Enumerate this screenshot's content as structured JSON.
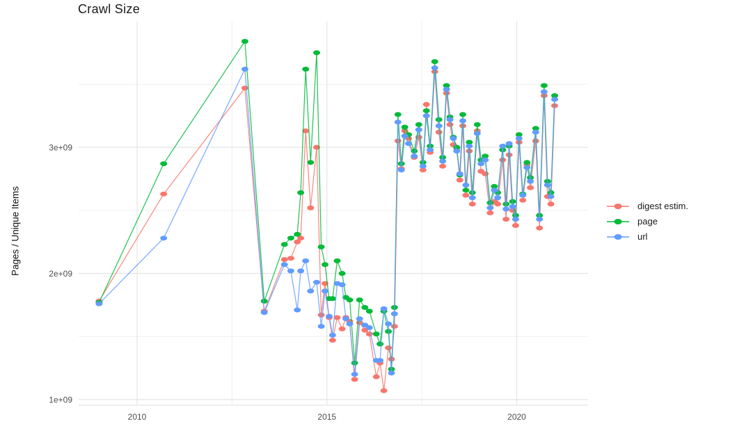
{
  "title": "Crawl Size",
  "axes": {
    "y_label": "Pages / Unique Items",
    "y_ticks": [
      "1e+09",
      "2e+09",
      "3e+09"
    ],
    "y_tick_values": [
      1,
      2,
      3
    ],
    "y_minor_values": [
      1.5,
      2.5,
      3.5
    ],
    "x_ticks": [
      "2010",
      "2015",
      "2020"
    ],
    "x_tick_values": [
      2010,
      2015,
      2020
    ],
    "x_minor_values": [
      2012.5,
      2017.5
    ]
  },
  "colors": {
    "digest": "#F8766D",
    "page": "#00BA38",
    "url": "#619CFF",
    "grid_major": "#e4e4e4",
    "grid_minor": "#efefef",
    "axis_text": "#4d4d4d",
    "title_text": "#1a1a1a"
  },
  "chart_data": {
    "type": "line",
    "title": "Crawl Size",
    "xlabel": "",
    "ylabel": "Pages / Unique Items",
    "y_unit": "items, billions (axis shows 1e+09 .. 3e+09)",
    "x_unit": "year (fractional = monthly crawls)",
    "xlim": [
      2008.5,
      2021.9
    ],
    "ylim": [
      1.0,
      4.0
    ],
    "grid": true,
    "legend_position": "right",
    "x": [
      2009.0,
      2010.7,
      2012.84,
      2013.35,
      2013.88,
      2014.05,
      2014.22,
      2014.31,
      2014.44,
      2014.57,
      2014.73,
      2014.85,
      2014.95,
      2015.06,
      2015.15,
      2015.27,
      2015.4,
      2015.5,
      2015.6,
      2015.73,
      2015.86,
      2016.0,
      2016.12,
      2016.3,
      2016.4,
      2016.5,
      2016.62,
      2016.7,
      2016.78,
      2016.87,
      2016.96,
      2017.05,
      2017.15,
      2017.3,
      2017.42,
      2017.53,
      2017.62,
      2017.72,
      2017.84,
      2017.95,
      2018.05,
      2018.15,
      2018.24,
      2018.33,
      2018.42,
      2018.5,
      2018.58,
      2018.66,
      2018.75,
      2018.83,
      2018.96,
      2019.06,
      2019.17,
      2019.3,
      2019.41,
      2019.5,
      2019.63,
      2019.72,
      2019.8,
      2019.89,
      2019.97,
      2020.06,
      2020.16,
      2020.27,
      2020.36,
      2020.5,
      2020.6,
      2020.72,
      2020.81,
      2020.9,
      2021.0
    ],
    "series": [
      {
        "name": "digest estim.",
        "color": "#F8766D",
        "values": [
          1.78,
          2.63,
          3.47,
          1.7,
          2.11,
          2.12,
          2.25,
          2.28,
          3.13,
          2.52,
          3.0,
          1.67,
          1.92,
          1.65,
          1.47,
          1.65,
          1.56,
          1.65,
          1.62,
          1.16,
          1.61,
          1.55,
          1.52,
          1.18,
          1.29,
          1.07,
          1.41,
          1.32,
          1.58,
          3.05,
          2.83,
          3.13,
          3.07,
          2.92,
          3.08,
          2.82,
          3.34,
          2.96,
          3.6,
          3.12,
          2.85,
          3.43,
          3.18,
          3.02,
          2.99,
          2.74,
          3.17,
          2.62,
          2.97,
          2.55,
          3.13,
          2.81,
          2.79,
          2.48,
          2.57,
          2.55,
          2.9,
          2.43,
          2.94,
          2.5,
          2.38,
          3.04,
          2.58,
          2.86,
          2.68,
          3.05,
          2.36,
          3.41,
          2.61,
          2.55,
          3.33
        ]
      },
      {
        "name": "page",
        "color": "#00BA38",
        "values": [
          1.77,
          2.87,
          3.84,
          1.78,
          2.23,
          2.28,
          2.31,
          2.64,
          3.62,
          2.88,
          3.75,
          2.21,
          2.07,
          1.8,
          1.8,
          2.1,
          2.0,
          1.81,
          1.79,
          1.29,
          1.79,
          1.73,
          1.7,
          1.52,
          1.44,
          1.7,
          1.54,
          1.24,
          1.73,
          3.26,
          2.87,
          3.16,
          3.1,
          2.97,
          3.18,
          2.88,
          3.29,
          3.01,
          3.68,
          3.22,
          2.92,
          3.49,
          3.24,
          3.08,
          3.0,
          2.78,
          3.26,
          2.66,
          3.04,
          2.64,
          3.18,
          2.9,
          2.93,
          2.56,
          2.69,
          2.64,
          2.98,
          2.55,
          3.01,
          2.57,
          2.46,
          3.1,
          2.63,
          2.88,
          2.76,
          3.15,
          2.46,
          3.49,
          2.73,
          2.64,
          3.41
        ]
      },
      {
        "name": "url",
        "color": "#619CFF",
        "values": [
          1.76,
          2.28,
          3.62,
          1.69,
          2.07,
          2.02,
          1.71,
          2.02,
          2.1,
          1.86,
          1.93,
          1.58,
          1.86,
          1.66,
          1.51,
          1.92,
          1.91,
          1.64,
          1.6,
          1.2,
          1.64,
          1.59,
          1.57,
          1.31,
          1.31,
          1.72,
          1.6,
          1.21,
          1.68,
          3.2,
          2.82,
          3.09,
          3.03,
          2.93,
          3.14,
          2.85,
          3.25,
          2.98,
          3.63,
          3.17,
          2.89,
          3.46,
          3.22,
          3.07,
          2.97,
          2.79,
          3.21,
          2.7,
          3.01,
          2.6,
          3.11,
          2.87,
          2.9,
          2.52,
          2.66,
          2.6,
          3.01,
          2.51,
          3.03,
          2.53,
          2.43,
          3.07,
          2.62,
          2.84,
          2.73,
          3.12,
          2.43,
          3.44,
          2.7,
          2.61,
          3.38
        ]
      }
    ]
  },
  "legend": {
    "items": [
      {
        "label": "digest estim."
      },
      {
        "label": "page"
      },
      {
        "label": "url"
      }
    ]
  }
}
